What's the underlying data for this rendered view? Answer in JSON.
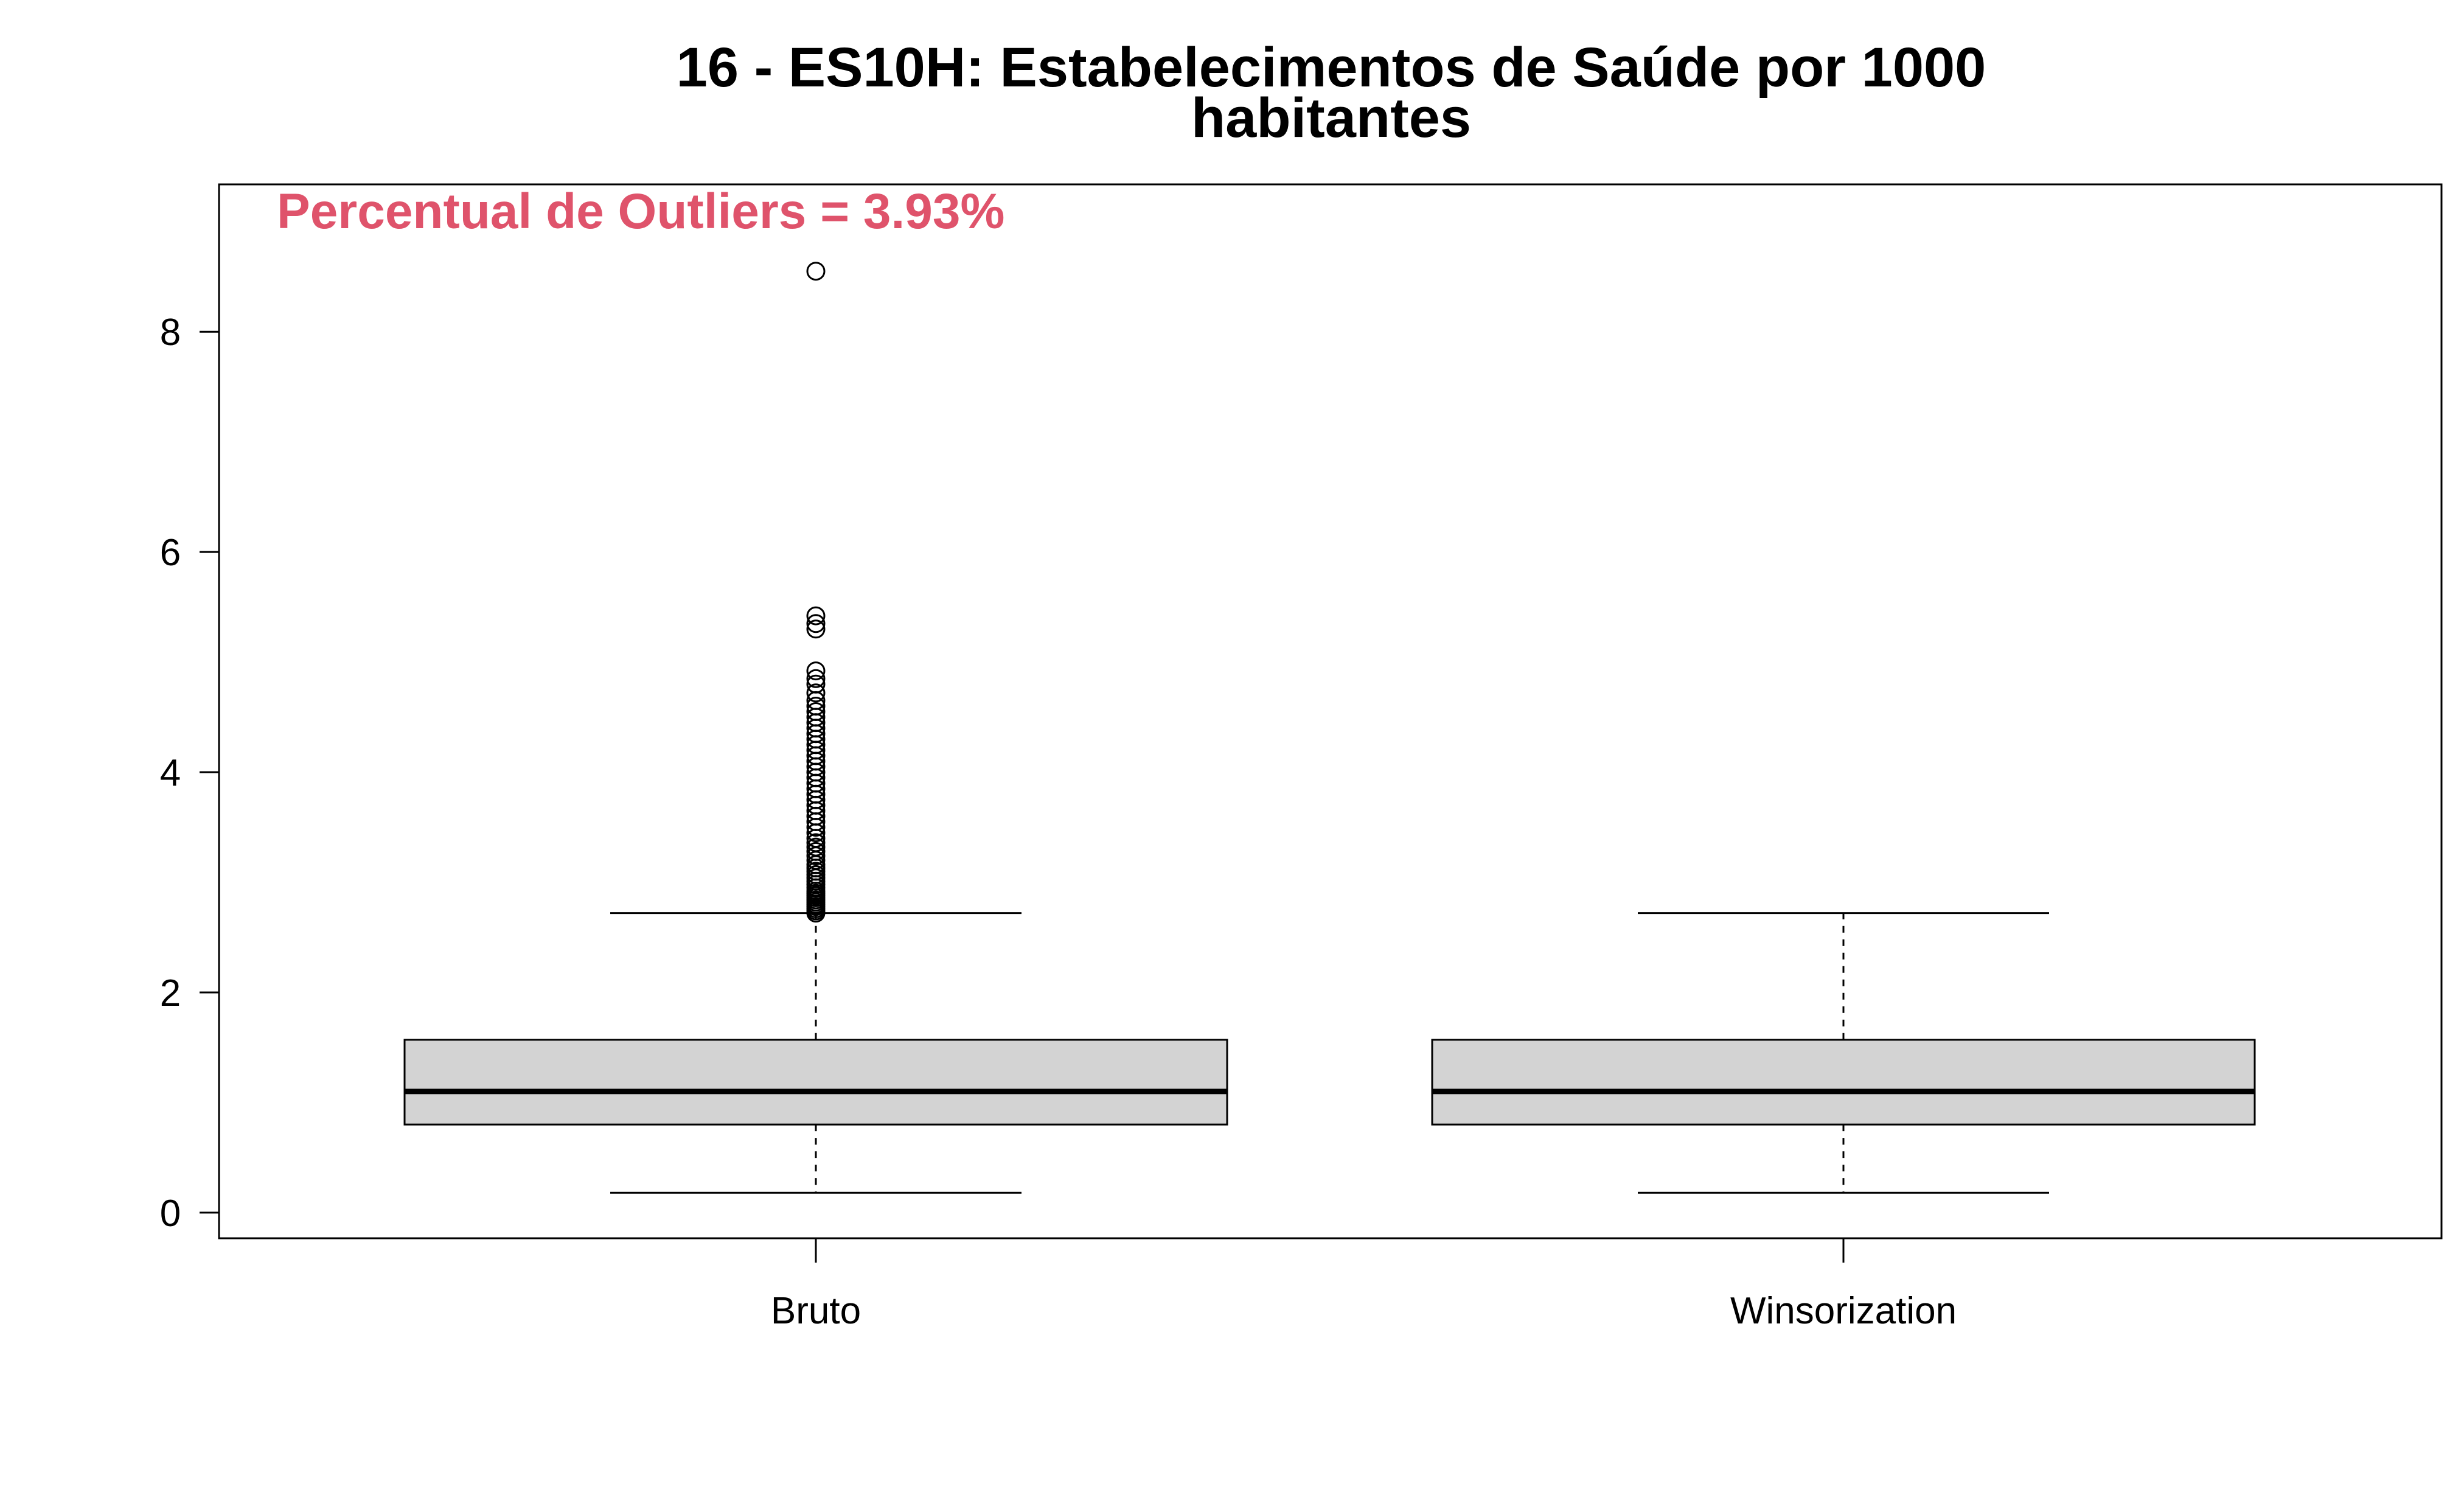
{
  "chart_data": {
    "type": "boxplot",
    "title_line1": "16 - ES10H: Estabelecimentos de Saúde por 1000",
    "title_line2": "habitantes",
    "annotation": "Percentual de Outliers = 3.93%",
    "annotation_color": "#DF536B",
    "box_fill": "#D3D3D3",
    "ylim": [
      -0.15,
      9.3
    ],
    "yticks": [
      0,
      2,
      4,
      6,
      8
    ],
    "ytick_labels": [
      "0",
      "2",
      "4",
      "6",
      "8"
    ],
    "categories": [
      "Bruto",
      "Winsorization"
    ],
    "boxes": [
      {
        "name": "Bruto",
        "whisker_low": 0.18,
        "q1": 0.8,
        "median": 1.1,
        "q3": 1.57,
        "whisker_high": 2.72,
        "outliers": [
          2.72,
          2.74,
          2.76,
          2.78,
          2.8,
          2.82,
          2.84,
          2.86,
          2.88,
          2.9,
          2.92,
          2.95,
          2.98,
          3.01,
          3.04,
          3.07,
          3.1,
          3.13,
          3.16,
          3.2,
          3.24,
          3.28,
          3.32,
          3.36,
          3.4,
          3.45,
          3.5,
          3.55,
          3.6,
          3.65,
          3.7,
          3.75,
          3.8,
          3.85,
          3.9,
          3.95,
          4.0,
          4.05,
          4.1,
          4.15,
          4.2,
          4.25,
          4.3,
          4.35,
          4.4,
          4.45,
          4.5,
          4.55,
          4.6,
          4.65,
          4.72,
          4.8,
          4.85,
          4.92,
          5.3,
          5.35,
          5.42,
          8.55
        ]
      },
      {
        "name": "Winsorization",
        "whisker_low": 0.18,
        "q1": 0.8,
        "median": 1.1,
        "q3": 1.57,
        "whisker_high": 2.72,
        "outliers": []
      }
    ]
  }
}
